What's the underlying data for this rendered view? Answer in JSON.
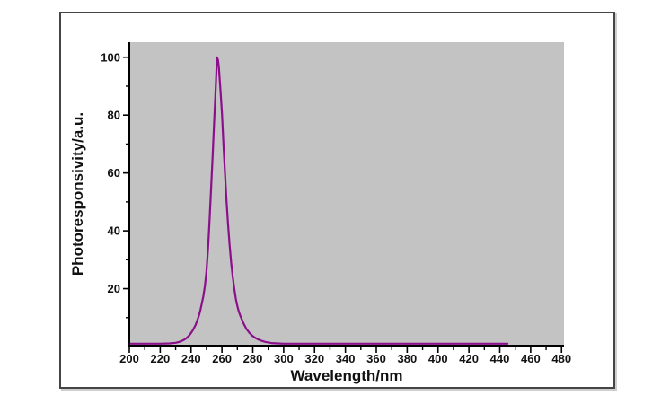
{
  "figure": {
    "border_color": "#454545",
    "shadow_color": "#cfcfcf",
    "background": "#ffffff"
  },
  "chart_data": {
    "type": "line",
    "title": "",
    "xlabel": "Wavelength/nm",
    "ylabel": "Photoresponsivity/a.u.",
    "xlim": [
      200,
      481.6
    ],
    "ylim": [
      0,
      105.2
    ],
    "x_ticks": [
      200,
      220,
      240,
      260,
      280,
      300,
      320,
      340,
      360,
      380,
      400,
      420,
      440,
      460,
      480
    ],
    "x_minor_ticks": [
      210,
      230,
      250,
      270,
      290,
      310,
      330,
      350,
      370,
      390,
      410,
      430,
      450,
      470
    ],
    "y_ticks": [
      20,
      40,
      60,
      80,
      100
    ],
    "y_minor_ticks": [
      10,
      30,
      50,
      70,
      90
    ],
    "grid": false,
    "legend": "none",
    "plot_bg": "#c3c3c3",
    "axis_color": "#000000",
    "line_color": "#8b0f8b",
    "peak_wavelength_nm": 257,
    "peak_value": 100,
    "series": [
      {
        "name": "photoresponsivity",
        "x": [
          200,
          210,
          220,
          226,
          230,
          233,
          235,
          237,
          239,
          241,
          243,
          245,
          246,
          247,
          248,
          249,
          250,
          251,
          252,
          253,
          254,
          255,
          256,
          256.8,
          257.5,
          258,
          259,
          260,
          261,
          262,
          263,
          264,
          265,
          266,
          267,
          268,
          269,
          270,
          271,
          272,
          274,
          276,
          278,
          280,
          282,
          285,
          288,
          292,
          296,
          300,
          310,
          320,
          340,
          360,
          380,
          400,
          420,
          435,
          445
        ],
        "y": [
          1,
          1,
          1,
          1.1,
          1.3,
          1.7,
          2.2,
          2.9,
          3.9,
          5.5,
          7.5,
          10.5,
          12.5,
          15,
          17.5,
          21,
          26,
          34,
          44,
          55,
          66,
          78,
          90,
          100,
          99,
          96.5,
          89,
          81,
          70,
          59.5,
          50,
          42,
          35,
          29,
          24,
          20,
          16.5,
          14,
          12,
          10.5,
          8,
          6,
          4.6,
          3.6,
          2.9,
          2.1,
          1.6,
          1.2,
          1.1,
          1,
          1,
          1,
          1,
          1,
          1,
          1,
          1,
          1,
          1
        ]
      }
    ]
  }
}
